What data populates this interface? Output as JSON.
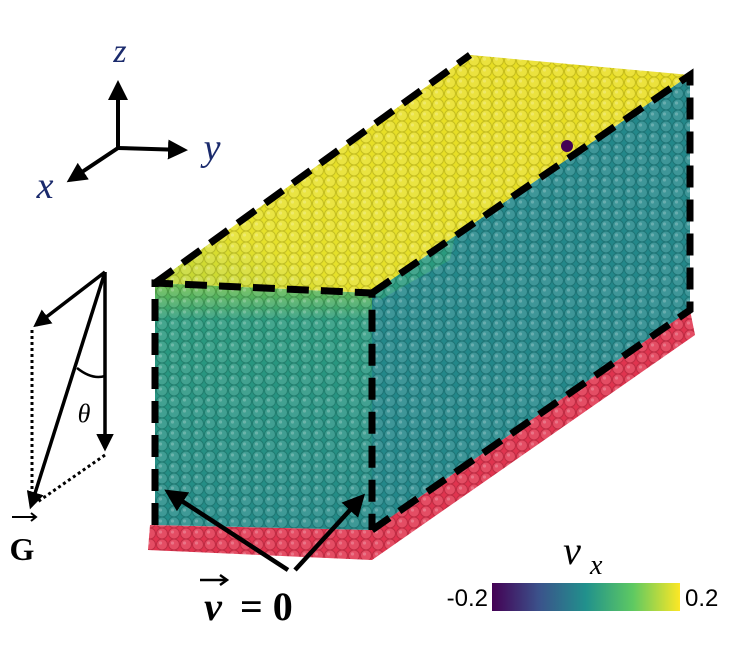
{
  "axes": {
    "z": "z",
    "y": "y",
    "x": "x"
  },
  "gravity": {
    "angle": "θ",
    "vector": "G"
  },
  "annotation": {
    "symbol": "v",
    "equals": "= 0"
  },
  "colorbar": {
    "symbol": "v",
    "subscript": "x",
    "min": -0.2,
    "max": 0.2
  }
}
